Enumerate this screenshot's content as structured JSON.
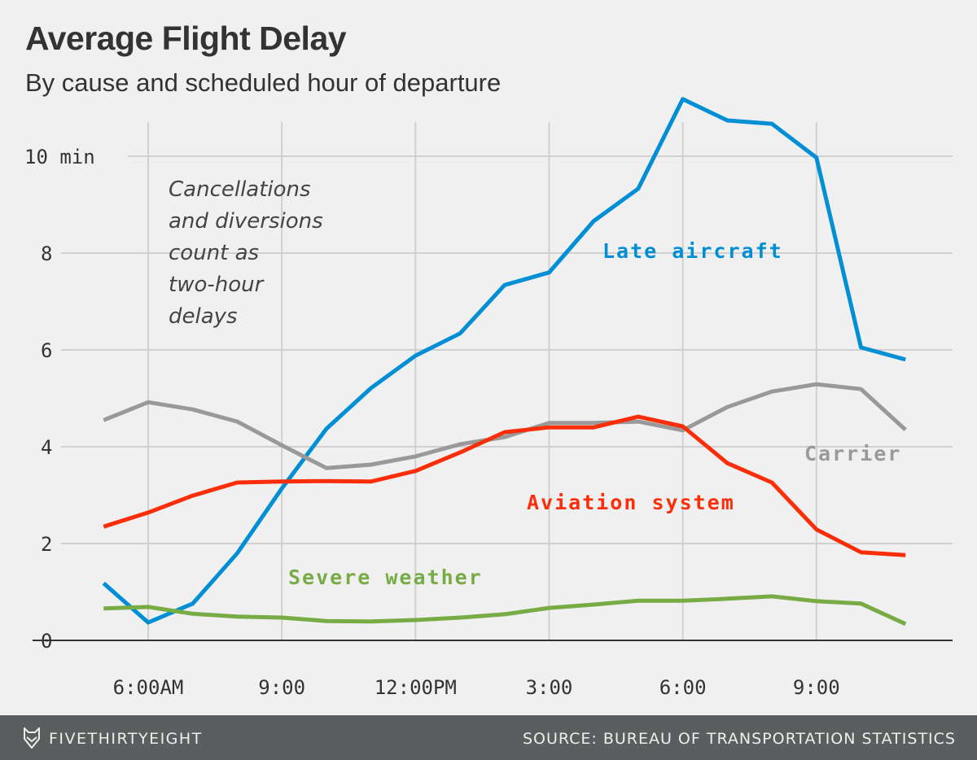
{
  "title": "Average Flight Delay",
  "subtitle": "By cause and scheduled hour of departure",
  "footer": {
    "brand": "FIVETHIRTYEIGHT",
    "source": "SOURCE: BUREAU OF TRANSPORTATION STATISTICS"
  },
  "chart_data": {
    "type": "line",
    "title": "Average Flight Delay",
    "subtitle": "By cause and scheduled hour of departure",
    "x": [
      5,
      6,
      7,
      8,
      9,
      10,
      11,
      12,
      13,
      14,
      15,
      16,
      17,
      18,
      19,
      20,
      21,
      22,
      23
    ],
    "xticks": [
      {
        "v": 6,
        "label": "6:00AM"
      },
      {
        "v": 9,
        "label": "9:00"
      },
      {
        "v": 12,
        "label": "12:00PM"
      },
      {
        "v": 15,
        "label": "3:00"
      },
      {
        "v": 18,
        "label": "6:00"
      },
      {
        "v": 21,
        "label": "9:00"
      }
    ],
    "yticks": [
      {
        "v": 0,
        "label": "0"
      },
      {
        "v": 2,
        "label": "2"
      },
      {
        "v": 4,
        "label": "4"
      },
      {
        "v": 6,
        "label": "6"
      },
      {
        "v": 8,
        "label": "8"
      },
      {
        "v": 10,
        "label": "10 min"
      }
    ],
    "ylim": [
      0,
      11.2
    ],
    "grid": true,
    "annotation": [
      "Cancellations",
      "and diversions",
      "count as",
      "two-hour",
      "delays"
    ],
    "series": [
      {
        "name": "Late aircraft",
        "color": "#008fd5",
        "values": [
          1.18,
          0.37,
          0.76,
          1.8,
          3.14,
          4.37,
          5.21,
          5.88,
          6.34,
          7.34,
          7.6,
          8.66,
          9.33,
          11.18,
          10.74,
          10.67,
          9.97,
          6.05,
          5.8
        ]
      },
      {
        "name": "Carrier",
        "color": "#999999",
        "values": [
          4.55,
          4.92,
          4.77,
          4.52,
          4.03,
          3.56,
          3.63,
          3.8,
          4.05,
          4.2,
          4.49,
          4.49,
          4.52,
          4.34,
          4.82,
          5.14,
          5.29,
          5.19,
          4.35
        ]
      },
      {
        "name": "Aviation system",
        "color": "#fc2e0a",
        "values": [
          2.35,
          2.64,
          2.99,
          3.26,
          3.28,
          3.29,
          3.28,
          3.5,
          3.88,
          4.3,
          4.4,
          4.4,
          4.62,
          4.42,
          3.66,
          3.26,
          2.29,
          1.82,
          1.76
        ]
      },
      {
        "name": "Severe weather",
        "color": "#77ab43",
        "values": [
          0.66,
          0.69,
          0.55,
          0.49,
          0.47,
          0.4,
          0.39,
          0.42,
          0.47,
          0.54,
          0.67,
          0.74,
          0.82,
          0.82,
          0.86,
          0.91,
          0.81,
          0.76,
          0.34
        ]
      }
    ]
  }
}
